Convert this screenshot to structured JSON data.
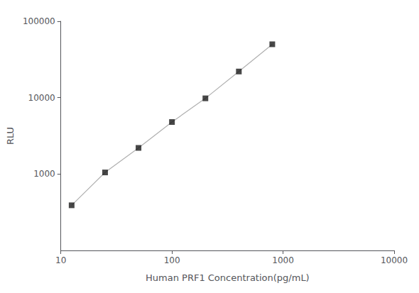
{
  "chart_data": {
    "type": "line",
    "xlabel": "Human PRF1 Concentration(pg/mL)",
    "ylabel": "RLU",
    "x": [
      12.5,
      25,
      50,
      100,
      200,
      400,
      800
    ],
    "series": [
      {
        "type": "line",
        "color": "#b0b0b0",
        "line_style": "solid",
        "values": [
          390,
          1050,
          2200,
          4800,
          9800,
          22000,
          50000
        ]
      },
      {
        "type": "scatter",
        "color": "#1a1a1a",
        "marker": "square",
        "values": [
          390,
          1050,
          2200,
          4800,
          9800,
          22000,
          50000
        ]
      }
    ],
    "xlim": [
      10,
      10000
    ],
    "ylim": [
      100,
      100000
    ],
    "xticks": [
      10,
      100,
      1000,
      10000
    ],
    "yticks": [
      1000,
      10000,
      100000
    ],
    "log": true,
    "grid": false
  }
}
